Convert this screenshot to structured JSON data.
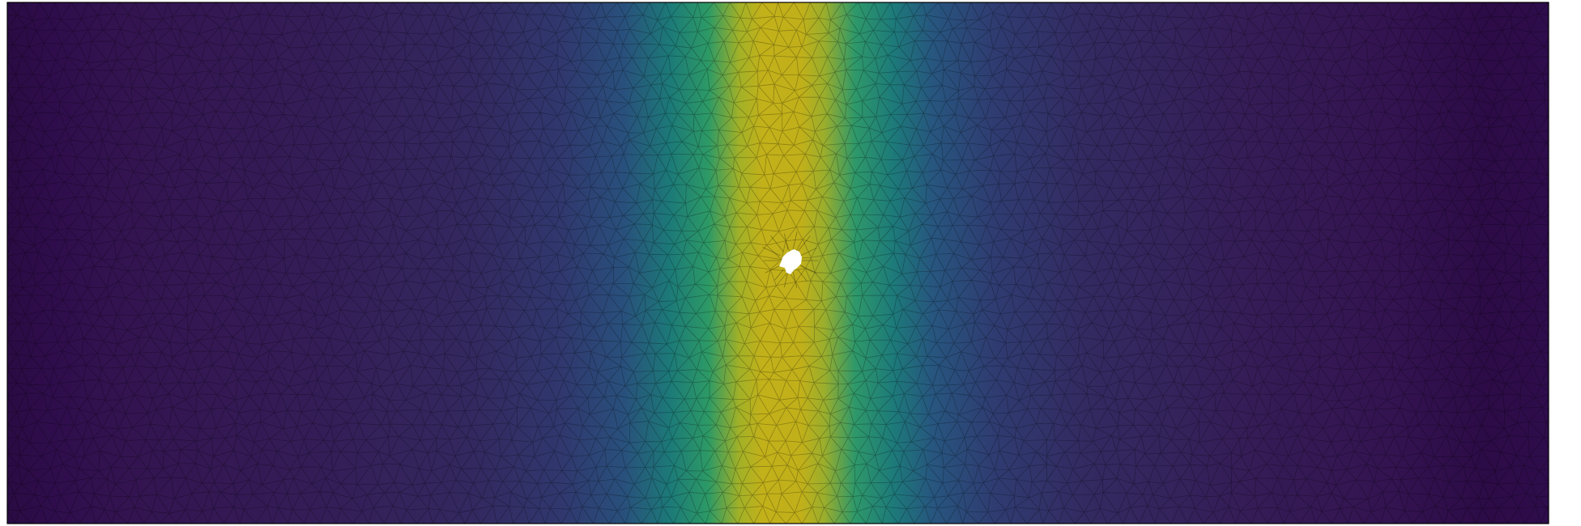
{
  "figure": {
    "colormap": "viridis",
    "colormap_stops": [
      "#440154",
      "#3b528b",
      "#21918c",
      "#5ec962",
      "#fde725"
    ],
    "field_description_colors": {
      "low": "#2d0f4f",
      "mid_low": "#2f3f77",
      "mid": "#1f8a74",
      "high": "#c0b21c"
    },
    "mesh": {
      "element_type": "triangle",
      "edge_color": "#000000"
    },
    "domain_border_color": "#000000",
    "hole": {
      "fill": "#ffffff"
    }
  }
}
